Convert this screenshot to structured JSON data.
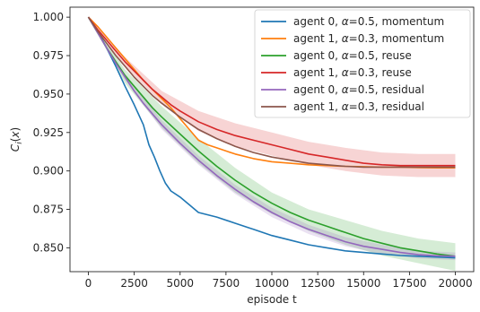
{
  "chart_data": {
    "type": "line",
    "xlabel": "episode t",
    "ylabel": "C_i(x)",
    "xlim": [
      -1000,
      21000
    ],
    "ylim": [
      0.8345,
      1.0065
    ],
    "xticks": [
      0,
      2500,
      5000,
      7500,
      10000,
      12500,
      15000,
      17500,
      20000
    ],
    "xtick_labels": [
      "0",
      "2500",
      "5000",
      "7500",
      "10000",
      "12500",
      "15000",
      "17500",
      "20000"
    ],
    "yticks": [
      0.85,
      0.875,
      0.9,
      0.925,
      0.95,
      0.975,
      1.0
    ],
    "ytick_labels": [
      "0.850",
      "0.875",
      "0.900",
      "0.925",
      "0.950",
      "0.975",
      "1.000"
    ],
    "grid": false,
    "legend_position": "top-right",
    "series": [
      {
        "name_parts": [
          "agent 0, ",
          "α",
          "=0.5, momentum"
        ],
        "color": "#1f77b4",
        "x": [
          0,
          500,
          1000,
          1500,
          2000,
          2500,
          3000,
          3300,
          3600,
          3900,
          4200,
          4500,
          5000,
          5500,
          6000,
          7000,
          8000,
          9000,
          10000,
          11000,
          12000,
          13000,
          14000,
          15000,
          16000,
          17000,
          18000,
          19000,
          20000
        ],
        "values": [
          1.0,
          0.991,
          0.98,
          0.968,
          0.955,
          0.943,
          0.93,
          0.917,
          0.909,
          0.9,
          0.892,
          0.887,
          0.883,
          0.878,
          0.873,
          0.87,
          0.866,
          0.862,
          0.858,
          0.855,
          0.852,
          0.85,
          0.848,
          0.847,
          0.846,
          0.845,
          0.8445,
          0.844,
          0.8435
        ]
      },
      {
        "name_parts": [
          "agent 1, ",
          "α",
          "=0.3, momentum"
        ],
        "color": "#ff7f0e",
        "x": [
          0,
          500,
          1000,
          1500,
          2000,
          2500,
          3000,
          3500,
          4000,
          4500,
          5000,
          5500,
          6000,
          6500,
          7000,
          7500,
          8000,
          9000,
          10000,
          11000,
          12000,
          13000,
          14000,
          15000,
          16000,
          17000,
          18000,
          19000,
          20000
        ],
        "values": [
          1.0,
          0.994,
          0.987,
          0.98,
          0.973,
          0.966,
          0.959,
          0.953,
          0.947,
          0.941,
          0.934,
          0.927,
          0.92,
          0.917,
          0.915,
          0.913,
          0.911,
          0.908,
          0.906,
          0.905,
          0.904,
          0.9035,
          0.903,
          0.9028,
          0.9025,
          0.9025,
          0.9022,
          0.902,
          0.902
        ]
      },
      {
        "name_parts": [
          "agent 0, ",
          "α",
          "=0.5, reuse"
        ],
        "color": "#2ca02c",
        "x": [
          0,
          500,
          1000,
          1500,
          2000,
          2500,
          3000,
          3500,
          4000,
          5000,
          6000,
          7000,
          8000,
          9000,
          10000,
          11000,
          12000,
          13000,
          14000,
          15000,
          16000,
          17000,
          18000,
          19000,
          20000
        ],
        "values": [
          1.0,
          0.99,
          0.98,
          0.971,
          0.962,
          0.955,
          0.948,
          0.941,
          0.935,
          0.924,
          0.913,
          0.903,
          0.894,
          0.886,
          0.879,
          0.873,
          0.868,
          0.864,
          0.86,
          0.856,
          0.853,
          0.85,
          0.848,
          0.846,
          0.8445
        ]
      },
      {
        "name_parts": [
          "agent 1, ",
          "α",
          "=0.3, reuse"
        ],
        "color": "#d62728",
        "x": [
          0,
          500,
          1000,
          1500,
          2000,
          2500,
          3000,
          3500,
          4000,
          4500,
          5000,
          6000,
          7000,
          8000,
          9000,
          10000,
          11000,
          12000,
          13000,
          14000,
          15000,
          16000,
          17000,
          18000,
          19000,
          20000
        ],
        "values": [
          1.0,
          0.992,
          0.985,
          0.978,
          0.971,
          0.965,
          0.959,
          0.953,
          0.948,
          0.943,
          0.939,
          0.932,
          0.927,
          0.923,
          0.92,
          0.917,
          0.914,
          0.911,
          0.909,
          0.907,
          0.905,
          0.904,
          0.9035,
          0.9035,
          0.9035,
          0.9035
        ]
      },
      {
        "name_parts": [
          "agent 0, ",
          "α",
          "=0.5, residual"
        ],
        "color": "#9467bd",
        "x": [
          0,
          500,
          1000,
          1500,
          2000,
          2500,
          3000,
          3500,
          4000,
          5000,
          6000,
          7000,
          8000,
          9000,
          10000,
          11000,
          12000,
          13000,
          14000,
          15000,
          16000,
          17000,
          18000,
          19000,
          20000
        ],
        "values": [
          1.0,
          0.99,
          0.98,
          0.97,
          0.961,
          0.952,
          0.944,
          0.937,
          0.93,
          0.918,
          0.907,
          0.897,
          0.888,
          0.88,
          0.873,
          0.867,
          0.862,
          0.858,
          0.854,
          0.851,
          0.849,
          0.847,
          0.8455,
          0.8448,
          0.8445
        ]
      },
      {
        "name_parts": [
          "agent 1, ",
          "α",
          "=0.3, residual"
        ],
        "color": "#8c564b",
        "x": [
          0,
          500,
          1000,
          1500,
          2000,
          2500,
          3000,
          3500,
          4000,
          5000,
          6000,
          7000,
          8000,
          9000,
          10000,
          11000,
          12000,
          13000,
          14000,
          15000,
          16000,
          17000,
          18000,
          19000,
          20000
        ],
        "values": [
          1.0,
          0.991,
          0.983,
          0.975,
          0.968,
          0.961,
          0.955,
          0.949,
          0.944,
          0.935,
          0.927,
          0.921,
          0.916,
          0.912,
          0.909,
          0.907,
          0.905,
          0.904,
          0.903,
          0.9025,
          0.9025,
          0.9025,
          0.9025,
          0.9025,
          0.9025
        ]
      }
    ],
    "bands": [
      {
        "series": "agent 0, α=0.5, reuse",
        "color": "#2ca02c",
        "x": [
          0,
          2000,
          4000,
          6000,
          8000,
          10000,
          12000,
          14000,
          16000,
          18000,
          20000
        ],
        "lower": [
          1.0,
          0.957,
          0.928,
          0.905,
          0.886,
          0.872,
          0.861,
          0.852,
          0.845,
          0.84,
          0.835
        ],
        "upper": [
          1.0,
          0.966,
          0.942,
          0.921,
          0.902,
          0.886,
          0.875,
          0.868,
          0.861,
          0.856,
          0.853
        ]
      },
      {
        "series": "agent 1, α=0.3, reuse",
        "color": "#d62728",
        "x": [
          0,
          2000,
          4000,
          6000,
          8000,
          10000,
          12000,
          14000,
          16000,
          18000,
          20000
        ],
        "lower": [
          1.0,
          0.968,
          0.944,
          0.926,
          0.916,
          0.91,
          0.904,
          0.9,
          0.897,
          0.896,
          0.896
        ],
        "upper": [
          1.0,
          0.974,
          0.952,
          0.939,
          0.931,
          0.925,
          0.919,
          0.915,
          0.912,
          0.911,
          0.911
        ]
      },
      {
        "series": "agent 0, α=0.5, residual",
        "color": "#9467bd",
        "x": [
          0,
          2000,
          4000,
          6000,
          8000,
          10000,
          12000,
          14000,
          16000,
          18000,
          20000
        ],
        "lower": [
          1.0,
          0.959,
          0.927,
          0.904,
          0.885,
          0.87,
          0.859,
          0.851,
          0.846,
          0.843,
          0.842
        ],
        "upper": [
          1.0,
          0.963,
          0.933,
          0.91,
          0.891,
          0.876,
          0.865,
          0.857,
          0.852,
          0.848,
          0.847
        ]
      }
    ]
  }
}
